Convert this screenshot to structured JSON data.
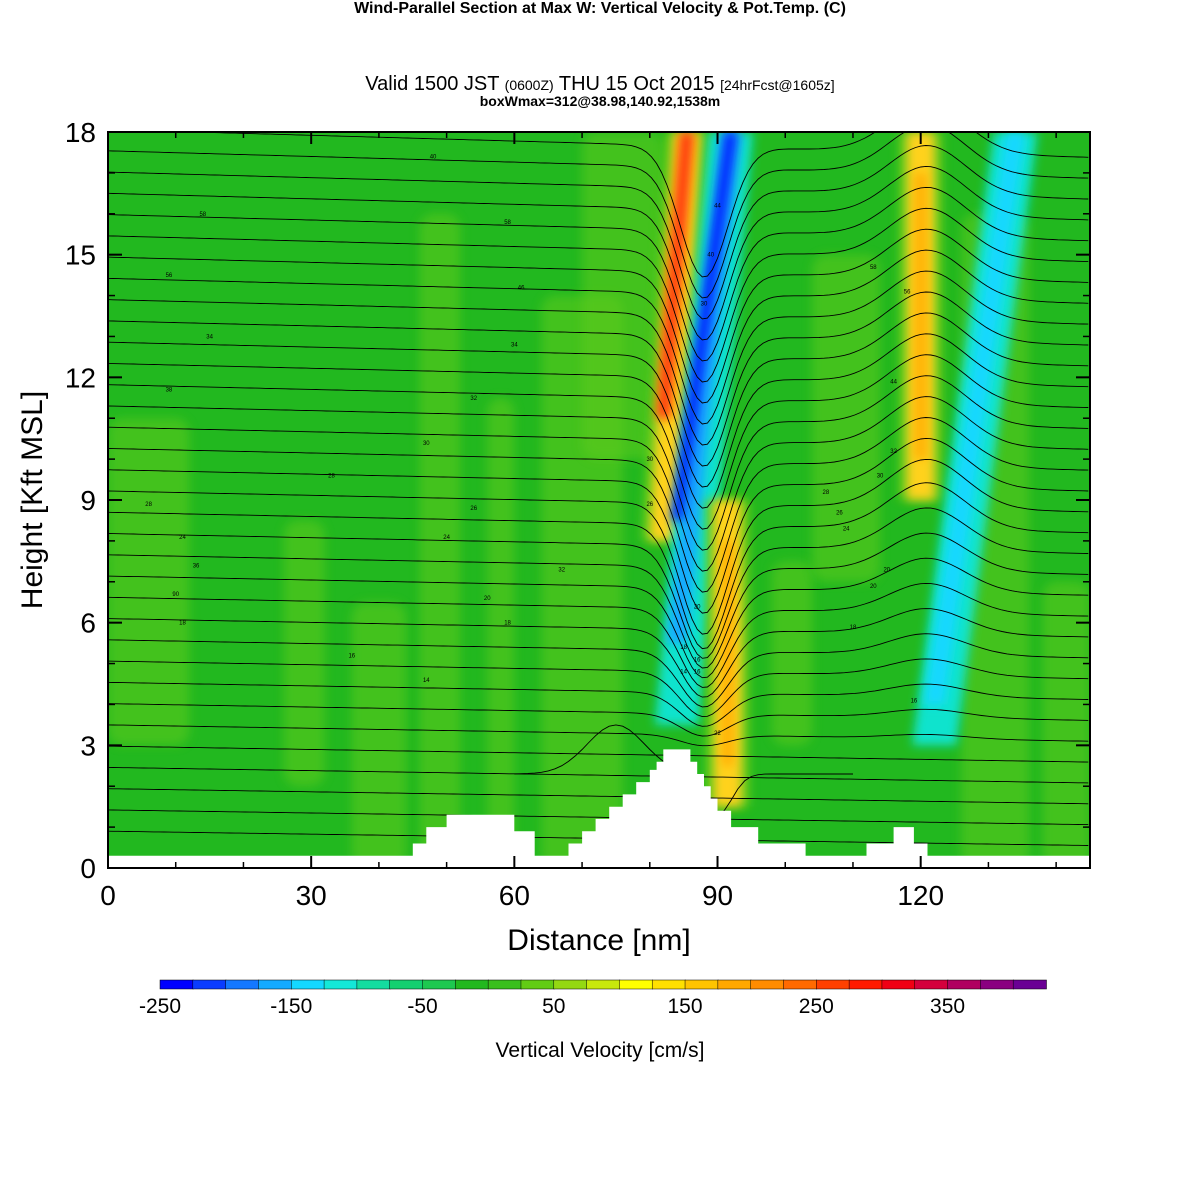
{
  "title": {
    "main": "Wind-Parallel Section at Max W: Vertical Velocity & Pot.Temp.",
    "copyright": "(C)",
    "valid_prefix": "Valid 1500 JST",
    "utc": "(0600Z)",
    "valid_date": "THU 15 Oct 2015",
    "forecast": "[24hrFcst@1605z]",
    "boxinfo": "boxWmax=312@38.98,140.92,1538m"
  },
  "colors": {
    "background_green": "#22b81f",
    "light_green": "#5fcb1a",
    "updraft_yellow": "#ffd21a",
    "updraft_red": "#ff3a10",
    "downdraft_cyan": "#10e8e0",
    "downdraft_blue": "#0020ff",
    "contour": "#000000",
    "terrain": "#ffffff"
  },
  "chart_data": {
    "type": "heatmap",
    "xlabel": "Distance [nm]",
    "ylabel": "Height [Kft MSL]",
    "xlim": [
      0,
      145
    ],
    "ylim": [
      0,
      18
    ],
    "xticks": [
      0,
      30,
      60,
      90,
      120
    ],
    "yticks": [
      0,
      3,
      6,
      9,
      12,
      15,
      18
    ],
    "colorbar": {
      "label": "Vertical Velocity [cm/s]",
      "tick_labels": [
        "-250",
        "-150",
        "-50",
        "50",
        "150",
        "250",
        "350"
      ],
      "tick_values": [
        -250,
        -150,
        -50,
        50,
        150,
        250,
        350
      ],
      "bins": [
        -250,
        -225,
        -200,
        -175,
        -150,
        -125,
        -100,
        -75,
        -50,
        -25,
        0,
        25,
        50,
        75,
        100,
        125,
        150,
        175,
        200,
        225,
        250,
        275,
        300,
        325,
        350,
        375,
        400,
        425
      ],
      "colors": [
        "#0000ff",
        "#0a3cff",
        "#1478ff",
        "#14aaff",
        "#14d8ff",
        "#14e8d8",
        "#14dca0",
        "#14d070",
        "#1ec850",
        "#22b81f",
        "#39bf1c",
        "#62cc14",
        "#94d812",
        "#c8e80c",
        "#ffff00",
        "#ffe000",
        "#ffc400",
        "#ffa800",
        "#ff8c00",
        "#ff6a00",
        "#ff4000",
        "#ff1a00",
        "#f00014",
        "#d4003c",
        "#b00060",
        "#8a0080",
        "#6a0094"
      ]
    },
    "features": [
      {
        "name": "updraft",
        "x_bottom": 82,
        "x_top": 85.5,
        "y_from": 8,
        "y_to": 18,
        "peak": 300
      },
      {
        "name": "downdraft",
        "x_bottom": 84,
        "x_top": 92,
        "y_from": 3.5,
        "y_to": 18,
        "peak": -250
      },
      {
        "name": "updraft",
        "x_bottom": 91.5,
        "x_top": 91.5,
        "y_from": 1.5,
        "y_to": 9,
        "peak": 150
      },
      {
        "name": "updraft",
        "x_bottom": 120,
        "x_top": 120,
        "y_from": 9,
        "y_to": 18,
        "peak": 175
      },
      {
        "name": "downdraft",
        "x_bottom": 122,
        "x_top": 134,
        "y_from": 3,
        "y_to": 18,
        "peak": -150
      }
    ],
    "terrain_height_kft": [
      [
        0,
        0.3
      ],
      [
        45,
        0.3
      ],
      [
        45,
        0.6
      ],
      [
        47,
        0.6
      ],
      [
        47,
        1.0
      ],
      [
        50,
        1.0
      ],
      [
        50,
        1.3
      ],
      [
        60,
        1.3
      ],
      [
        60,
        0.9
      ],
      [
        63,
        0.9
      ],
      [
        63,
        0.3
      ],
      [
        68,
        0.3
      ],
      [
        68,
        0.6
      ],
      [
        70,
        0.6
      ],
      [
        70,
        0.9
      ],
      [
        72,
        0.9
      ],
      [
        72,
        1.2
      ],
      [
        74,
        1.2
      ],
      [
        74,
        1.5
      ],
      [
        76,
        1.5
      ],
      [
        76,
        1.8
      ],
      [
        78,
        1.8
      ],
      [
        78,
        2.1
      ],
      [
        80,
        2.1
      ],
      [
        80,
        2.4
      ],
      [
        81,
        2.4
      ],
      [
        81,
        2.6
      ],
      [
        82,
        2.6
      ],
      [
        82,
        2.9
      ],
      [
        86,
        2.9
      ],
      [
        86,
        2.6
      ],
      [
        87,
        2.6
      ],
      [
        87,
        2.3
      ],
      [
        88,
        2.3
      ],
      [
        88,
        2.0
      ],
      [
        89,
        2.0
      ],
      [
        89,
        1.7
      ],
      [
        90,
        1.7
      ],
      [
        90,
        1.4
      ],
      [
        92,
        1.4
      ],
      [
        92,
        1.0
      ],
      [
        96,
        1.0
      ],
      [
        96,
        0.6
      ],
      [
        103,
        0.6
      ],
      [
        103,
        0.3
      ],
      [
        112,
        0.3
      ],
      [
        112,
        0.6
      ],
      [
        116,
        0.6
      ],
      [
        116,
        1.0
      ],
      [
        119,
        1.0
      ],
      [
        119,
        0.6
      ],
      [
        121,
        0.6
      ],
      [
        121,
        0.3
      ],
      [
        145,
        0.3
      ]
    ],
    "theta_labels": [
      {
        "x": 48,
        "y": 17.4,
        "text": "40"
      },
      {
        "x": 14,
        "y": 16.0,
        "text": "58"
      },
      {
        "x": 59,
        "y": 15.8,
        "text": "58"
      },
      {
        "x": 9,
        "y": 14.5,
        "text": "56"
      },
      {
        "x": 61,
        "y": 14.2,
        "text": "46"
      },
      {
        "x": 15,
        "y": 13.0,
        "text": "34"
      },
      {
        "x": 60,
        "y": 12.8,
        "text": "34"
      },
      {
        "x": 9,
        "y": 11.7,
        "text": "38"
      },
      {
        "x": 54,
        "y": 11.5,
        "text": "32"
      },
      {
        "x": 47,
        "y": 10.4,
        "text": "30"
      },
      {
        "x": 80,
        "y": 10.0,
        "text": "30"
      },
      {
        "x": 33,
        "y": 9.6,
        "text": "28"
      },
      {
        "x": 6,
        "y": 8.9,
        "text": "28"
      },
      {
        "x": 54,
        "y": 8.8,
        "text": "26"
      },
      {
        "x": 80,
        "y": 8.9,
        "text": "26"
      },
      {
        "x": 11,
        "y": 8.1,
        "text": "24"
      },
      {
        "x": 50,
        "y": 8.1,
        "text": "24"
      },
      {
        "x": 13,
        "y": 7.4,
        "text": "36"
      },
      {
        "x": 67,
        "y": 7.3,
        "text": "32"
      },
      {
        "x": 10,
        "y": 6.7,
        "text": "90"
      },
      {
        "x": 56,
        "y": 6.6,
        "text": "20"
      },
      {
        "x": 11,
        "y": 6.0,
        "text": "18"
      },
      {
        "x": 59,
        "y": 6.0,
        "text": "18"
      },
      {
        "x": 36,
        "y": 5.2,
        "text": "16"
      },
      {
        "x": 47,
        "y": 4.6,
        "text": "14"
      },
      {
        "x": 90,
        "y": 3.3,
        "text": "22"
      },
      {
        "x": 113,
        "y": 14.7,
        "text": "58"
      },
      {
        "x": 118,
        "y": 14.1,
        "text": "56"
      },
      {
        "x": 116,
        "y": 11.9,
        "text": "44"
      },
      {
        "x": 116,
        "y": 10.2,
        "text": "32"
      },
      {
        "x": 114,
        "y": 9.6,
        "text": "30"
      },
      {
        "x": 106,
        "y": 9.2,
        "text": "28"
      },
      {
        "x": 108,
        "y": 8.7,
        "text": "26"
      },
      {
        "x": 109,
        "y": 8.3,
        "text": "24"
      },
      {
        "x": 115,
        "y": 7.3,
        "text": "20"
      },
      {
        "x": 113,
        "y": 6.9,
        "text": "20"
      },
      {
        "x": 110,
        "y": 5.9,
        "text": "18"
      },
      {
        "x": 119,
        "y": 4.1,
        "text": "16"
      },
      {
        "x": 90,
        "y": 16.2,
        "text": "44"
      },
      {
        "x": 89,
        "y": 15.0,
        "text": "40"
      },
      {
        "x": 88,
        "y": 13.8,
        "text": "30"
      },
      {
        "x": 87,
        "y": 6.4,
        "text": "20"
      },
      {
        "x": 85,
        "y": 5.4,
        "text": "18"
      },
      {
        "x": 87,
        "y": 5.1,
        "text": "16"
      },
      {
        "x": 85,
        "y": 4.8,
        "text": "14"
      },
      {
        "x": 87,
        "y": 4.8,
        "text": "16"
      }
    ]
  }
}
